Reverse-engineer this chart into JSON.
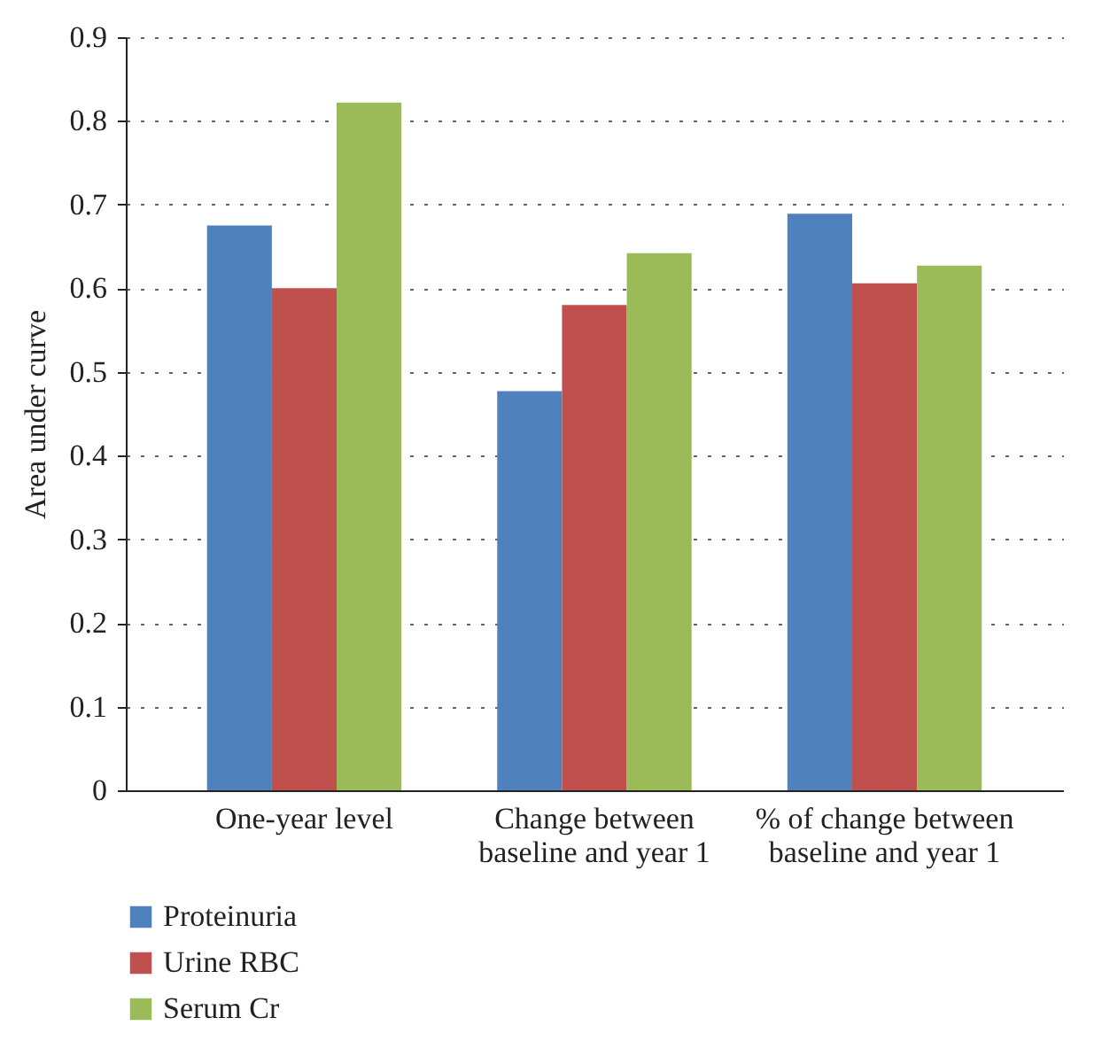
{
  "chart_data": {
    "type": "bar",
    "ylabel": "Area under curve",
    "categories": [
      "One-year level",
      "Change between baseline and year 1",
      "% of change between baseline and year 1"
    ],
    "series": [
      {
        "name": "Proteinuria",
        "color": "#4f81bd",
        "values": [
          0.675,
          0.477,
          0.689
        ]
      },
      {
        "name": "Urine RBC",
        "color": "#c0504d",
        "values": [
          0.6,
          0.58,
          0.606
        ]
      },
      {
        "name": "Serum Cr",
        "color": "#9bbb59",
        "values": [
          0.822,
          0.642,
          0.627
        ]
      }
    ],
    "ylim": [
      0,
      0.9
    ],
    "yticks": [
      0,
      0.1,
      0.2,
      0.3,
      0.4,
      0.5,
      0.6,
      0.7,
      0.8,
      0.9
    ],
    "grid": "y",
    "legend": "bottom"
  }
}
